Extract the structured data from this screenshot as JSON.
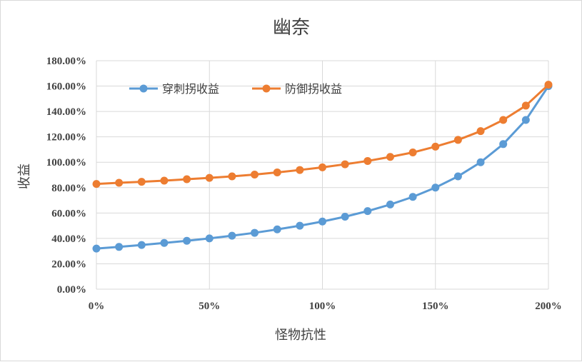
{
  "chart_data": {
    "type": "line",
    "title": "幽奈",
    "xlabel": "怪物抗性",
    "ylabel": "收益",
    "x": [
      0,
      10,
      20,
      30,
      40,
      50,
      60,
      70,
      80,
      90,
      100,
      110,
      120,
      130,
      140,
      150,
      160,
      170,
      180,
      190,
      200
    ],
    "xticks": [
      "0%",
      "50%",
      "100%",
      "150%",
      "200%"
    ],
    "xtick_values": [
      0,
      50,
      100,
      150,
      200
    ],
    "yticks": [
      "0.00%",
      "20.00%",
      "40.00%",
      "60.00%",
      "80.00%",
      "100.00%",
      "120.00%",
      "140.00%",
      "160.00%",
      "180.00%"
    ],
    "ylim": [
      0,
      180
    ],
    "xlim": [
      0,
      200
    ],
    "grid": true,
    "legend_position": "top-left",
    "series": [
      {
        "name": "穿刺拐收益",
        "color": "#5B9BD5",
        "values": [
          32.0,
          33.3,
          34.8,
          36.4,
          38.1,
          40.0,
          42.1,
          44.4,
          47.1,
          50.0,
          53.3,
          57.1,
          61.5,
          66.7,
          72.7,
          80.0,
          88.9,
          100.0,
          114.3,
          133.3,
          160.0
        ]
      },
      {
        "name": "防御拐收益",
        "color": "#ED7D31",
        "values": [
          82.9,
          83.8,
          84.6,
          85.5,
          86.6,
          87.7,
          88.9,
          90.3,
          92.0,
          93.9,
          96.0,
          98.4,
          101.0,
          104.2,
          107.7,
          112.3,
          117.6,
          124.5,
          133.3,
          144.6,
          161.1
        ]
      }
    ]
  }
}
